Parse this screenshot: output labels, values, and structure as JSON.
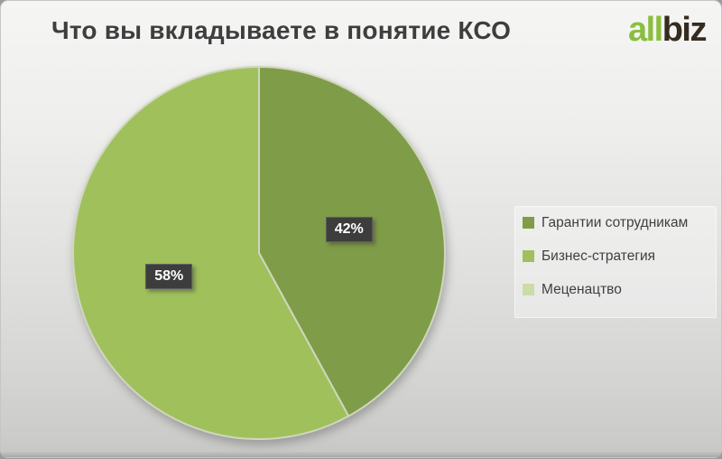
{
  "header": {
    "title": "Что вы вкладываете в понятие КСО",
    "logo": {
      "green_part": "all",
      "dark_part": "biz"
    }
  },
  "chart_data": {
    "type": "pie",
    "title": "Что вы вкладываете в понятие КСО",
    "categories": [
      "Гарантии сотрудникам",
      "Бизнес-стратегия",
      "Меценацтво"
    ],
    "values": [
      42,
      58,
      0
    ],
    "unit": "%",
    "data_labels": [
      "42%",
      "58%",
      ""
    ],
    "colors": [
      "#7f9c48",
      "#a0c05c",
      "#cbdca6"
    ],
    "slice_border_color": "#ced7bd",
    "legend_position": "right",
    "start_angle_deg": 0,
    "direction": "clockwise"
  },
  "colors": {
    "title_text": "#3e3e3e",
    "logo_green": "#8bbe3e",
    "logo_dark": "#352c20",
    "data_label_bg": "#3d3d3d",
    "data_label_text": "#ffffff",
    "legend_text": "#3f3f3f",
    "background_top": "#f5f5f4",
    "background_bottom": "#c6c6c5"
  }
}
